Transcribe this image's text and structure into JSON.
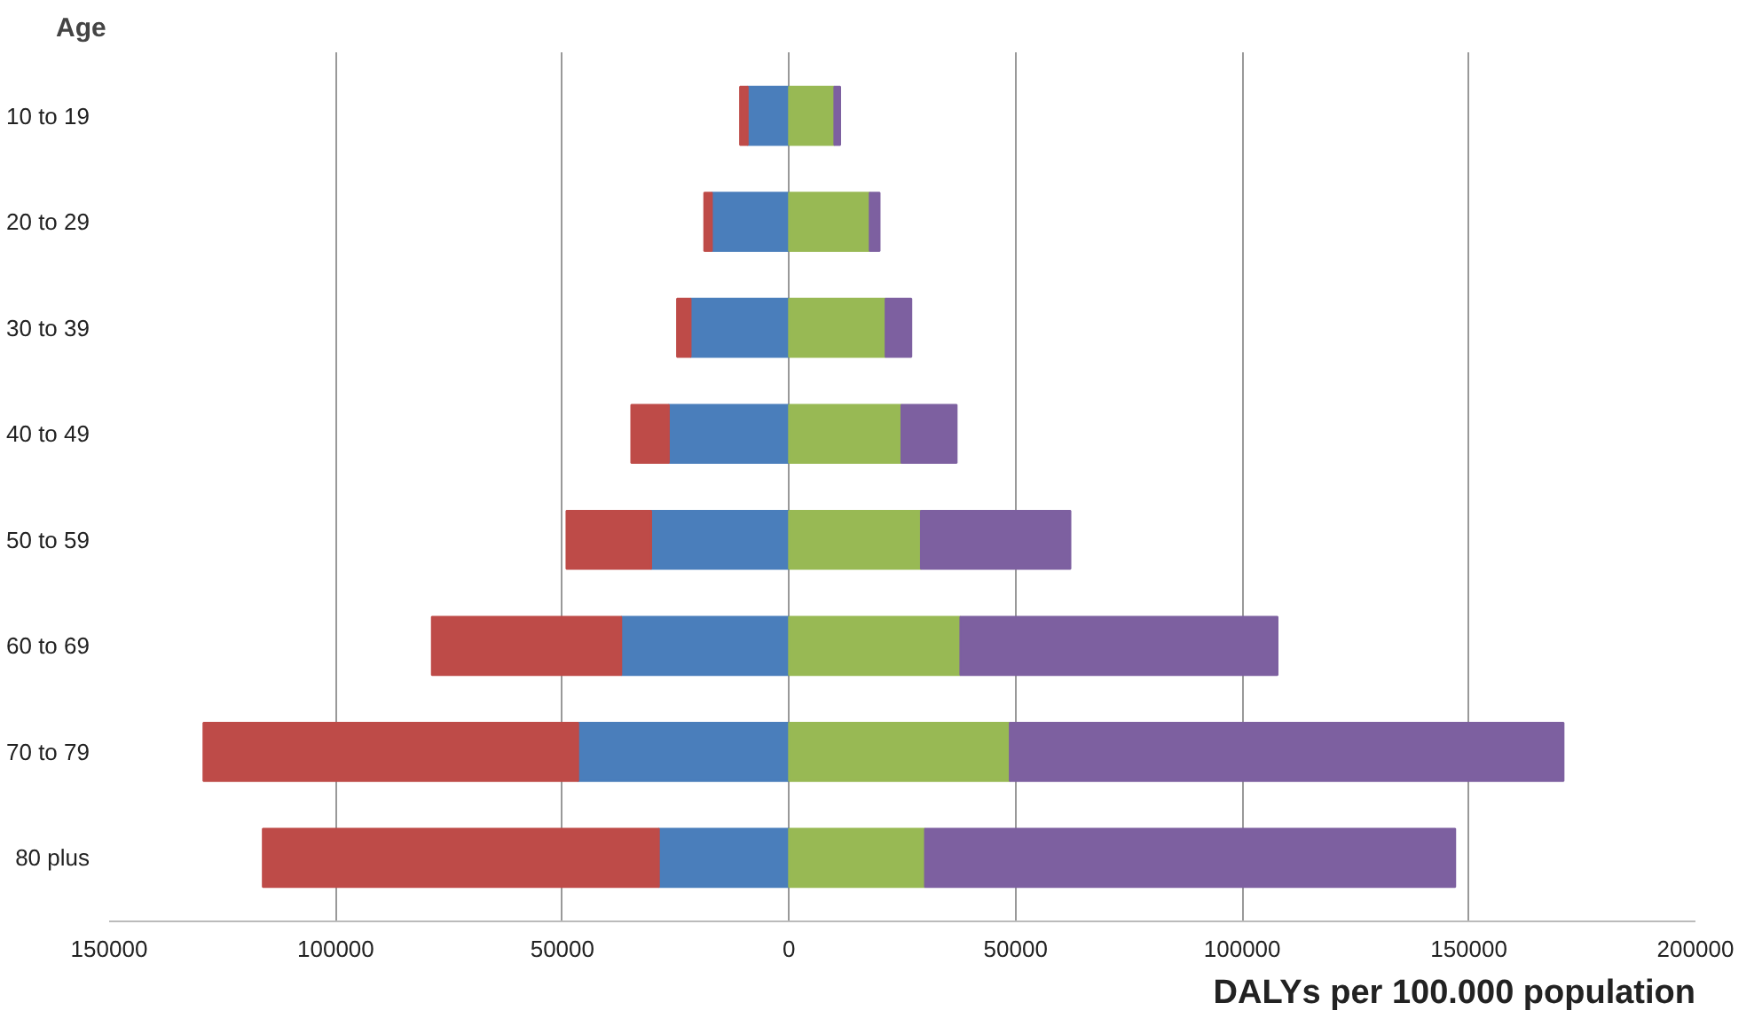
{
  "chart_data": {
    "type": "bar",
    "orientation": "horizontal",
    "stacked": true,
    "ylabel": "Age",
    "xlabel": "DALYs per 100.000 population",
    "categories": [
      "10 to 19",
      "20 to 29",
      "30 to 39",
      "40 to 49",
      "50 to 59",
      "60 to 69",
      "70 to 79",
      "80 plus"
    ],
    "series": [
      {
        "color": "#4a7ebb",
        "values": [
          -9100,
          -17000,
          -21700,
          -26500,
          -30400,
          -37000,
          -46500,
          -28700
        ]
      },
      {
        "color": "#be4b48",
        "values": [
          -1700,
          -1700,
          -3000,
          -8300,
          -18700,
          -41800,
          -82700,
          -87400
        ]
      },
      {
        "color": "#98b954",
        "values": [
          10000,
          17800,
          21300,
          24800,
          29100,
          37800,
          48700,
          30000
        ]
      },
      {
        "color": "#7d60a0",
        "values": [
          1300,
          2200,
          5700,
          12200,
          33000,
          70000,
          122200,
          117000
        ]
      }
    ],
    "xlim": [
      -150000,
      200000
    ],
    "xticks": [
      {
        "value": -150000,
        "label": "150000"
      },
      {
        "value": -100000,
        "label": "100000"
      },
      {
        "value": -50000,
        "label": "50000"
      },
      0,
      50000,
      100000,
      150000,
      200000
    ],
    "grid": "x"
  }
}
